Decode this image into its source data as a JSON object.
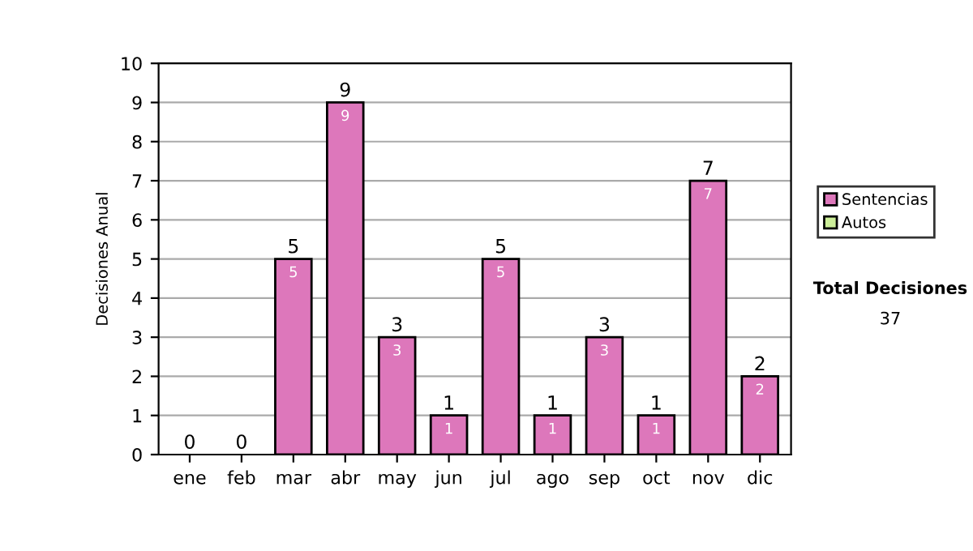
{
  "chart_data": {
    "type": "bar",
    "ylabel": "Decisiones Anual",
    "categories": [
      "ene",
      "feb",
      "mar",
      "abr",
      "may",
      "jun",
      "jul",
      "ago",
      "sep",
      "oct",
      "nov",
      "dic"
    ],
    "series": [
      {
        "name": "Sentencias",
        "color": "#dd77bb",
        "values": [
          0,
          0,
          5,
          9,
          3,
          1,
          5,
          1,
          3,
          1,
          7,
          2
        ],
        "value_labels": [
          null,
          null,
          "5",
          "9",
          "3",
          "1",
          "5",
          "1",
          "3",
          "1",
          "7",
          "2"
        ]
      },
      {
        "name": "Autos",
        "color": "#ccee99",
        "values": [
          0,
          0,
          0,
          0,
          0,
          0,
          0,
          0,
          0,
          0,
          0,
          0
        ]
      }
    ],
    "totals": [
      "0",
      "0",
      "5",
      "9",
      "3",
      "1",
      "5",
      "1",
      "3",
      "1",
      "7",
      "2"
    ],
    "ylim": [
      0,
      10
    ],
    "yticks": [
      0,
      1,
      2,
      3,
      4,
      5,
      6,
      7,
      8,
      9,
      10
    ],
    "grid": "y",
    "legend": "right",
    "annotations": [
      "Total Decisiones",
      "37"
    ]
  }
}
